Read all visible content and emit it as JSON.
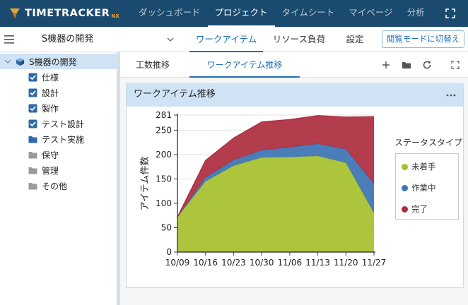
{
  "app": {
    "logo_text": "TIMETRACKER",
    "logo_suffix": "NX"
  },
  "nav": {
    "items": [
      "ダッシュボード",
      "プロジェクト",
      "タイムシート",
      "マイページ",
      "分析"
    ],
    "active_index": 1
  },
  "project_bar": {
    "project_name": "S機器の開発",
    "tabs": [
      "ワークアイテム",
      "リソース負荷",
      "設定"
    ],
    "active_tab_index": 0,
    "view_mode_button": "閲覧モードに切替え"
  },
  "sidebar": {
    "root_label": "S機器の開発",
    "items": [
      {
        "label": "仕様",
        "icon": "checkbox-checked-icon"
      },
      {
        "label": "設計",
        "icon": "checkbox-checked-icon"
      },
      {
        "label": "製作",
        "icon": "checkbox-checked-icon"
      },
      {
        "label": "テスト設計",
        "icon": "checkbox-checked-icon"
      },
      {
        "label": "テスト実施",
        "icon": "folder-blue-icon"
      },
      {
        "label": "保守",
        "icon": "folder-gray-icon"
      },
      {
        "label": "管理",
        "icon": "folder-gray-icon"
      },
      {
        "label": "その他",
        "icon": "folder-gray-icon"
      }
    ]
  },
  "main": {
    "tabs": [
      "工数推移",
      "ワークアイテム推移"
    ],
    "active_tab_index": 1,
    "panel_title": "ワークアイテム推移"
  },
  "colors": {
    "nav_bg": "#1a4a6e",
    "accent": "#1f6fb4",
    "not_started": "#a5c02c",
    "in_progress": "#3b73b3",
    "done": "#ad2b3e"
  },
  "chart_data": {
    "type": "area",
    "stacked": true,
    "x": [
      "10/09",
      "10/16",
      "10/23",
      "10/30",
      "11/06",
      "11/13",
      "11/20",
      "11/27"
    ],
    "ylabel": "アイテム件数",
    "ylim": [
      0,
      281
    ],
    "yticks": [
      0,
      50,
      100,
      150,
      200,
      250,
      281
    ],
    "grid": true,
    "legend_title": "ステータスタイプ",
    "legend_position": "right",
    "series": [
      {
        "name": "未着手",
        "color": "#a5c02c",
        "values": [
          72,
          145,
          177,
          194,
          195,
          197,
          183,
          80
        ]
      },
      {
        "name": "作業中",
        "color": "#3b73b3",
        "values": [
          0,
          8,
          12,
          15,
          20,
          25,
          28,
          60
        ]
      },
      {
        "name": "完了",
        "color": "#ad2b3e",
        "values": [
          0,
          35,
          45,
          58,
          57,
          58,
          66,
          138
        ]
      }
    ]
  }
}
